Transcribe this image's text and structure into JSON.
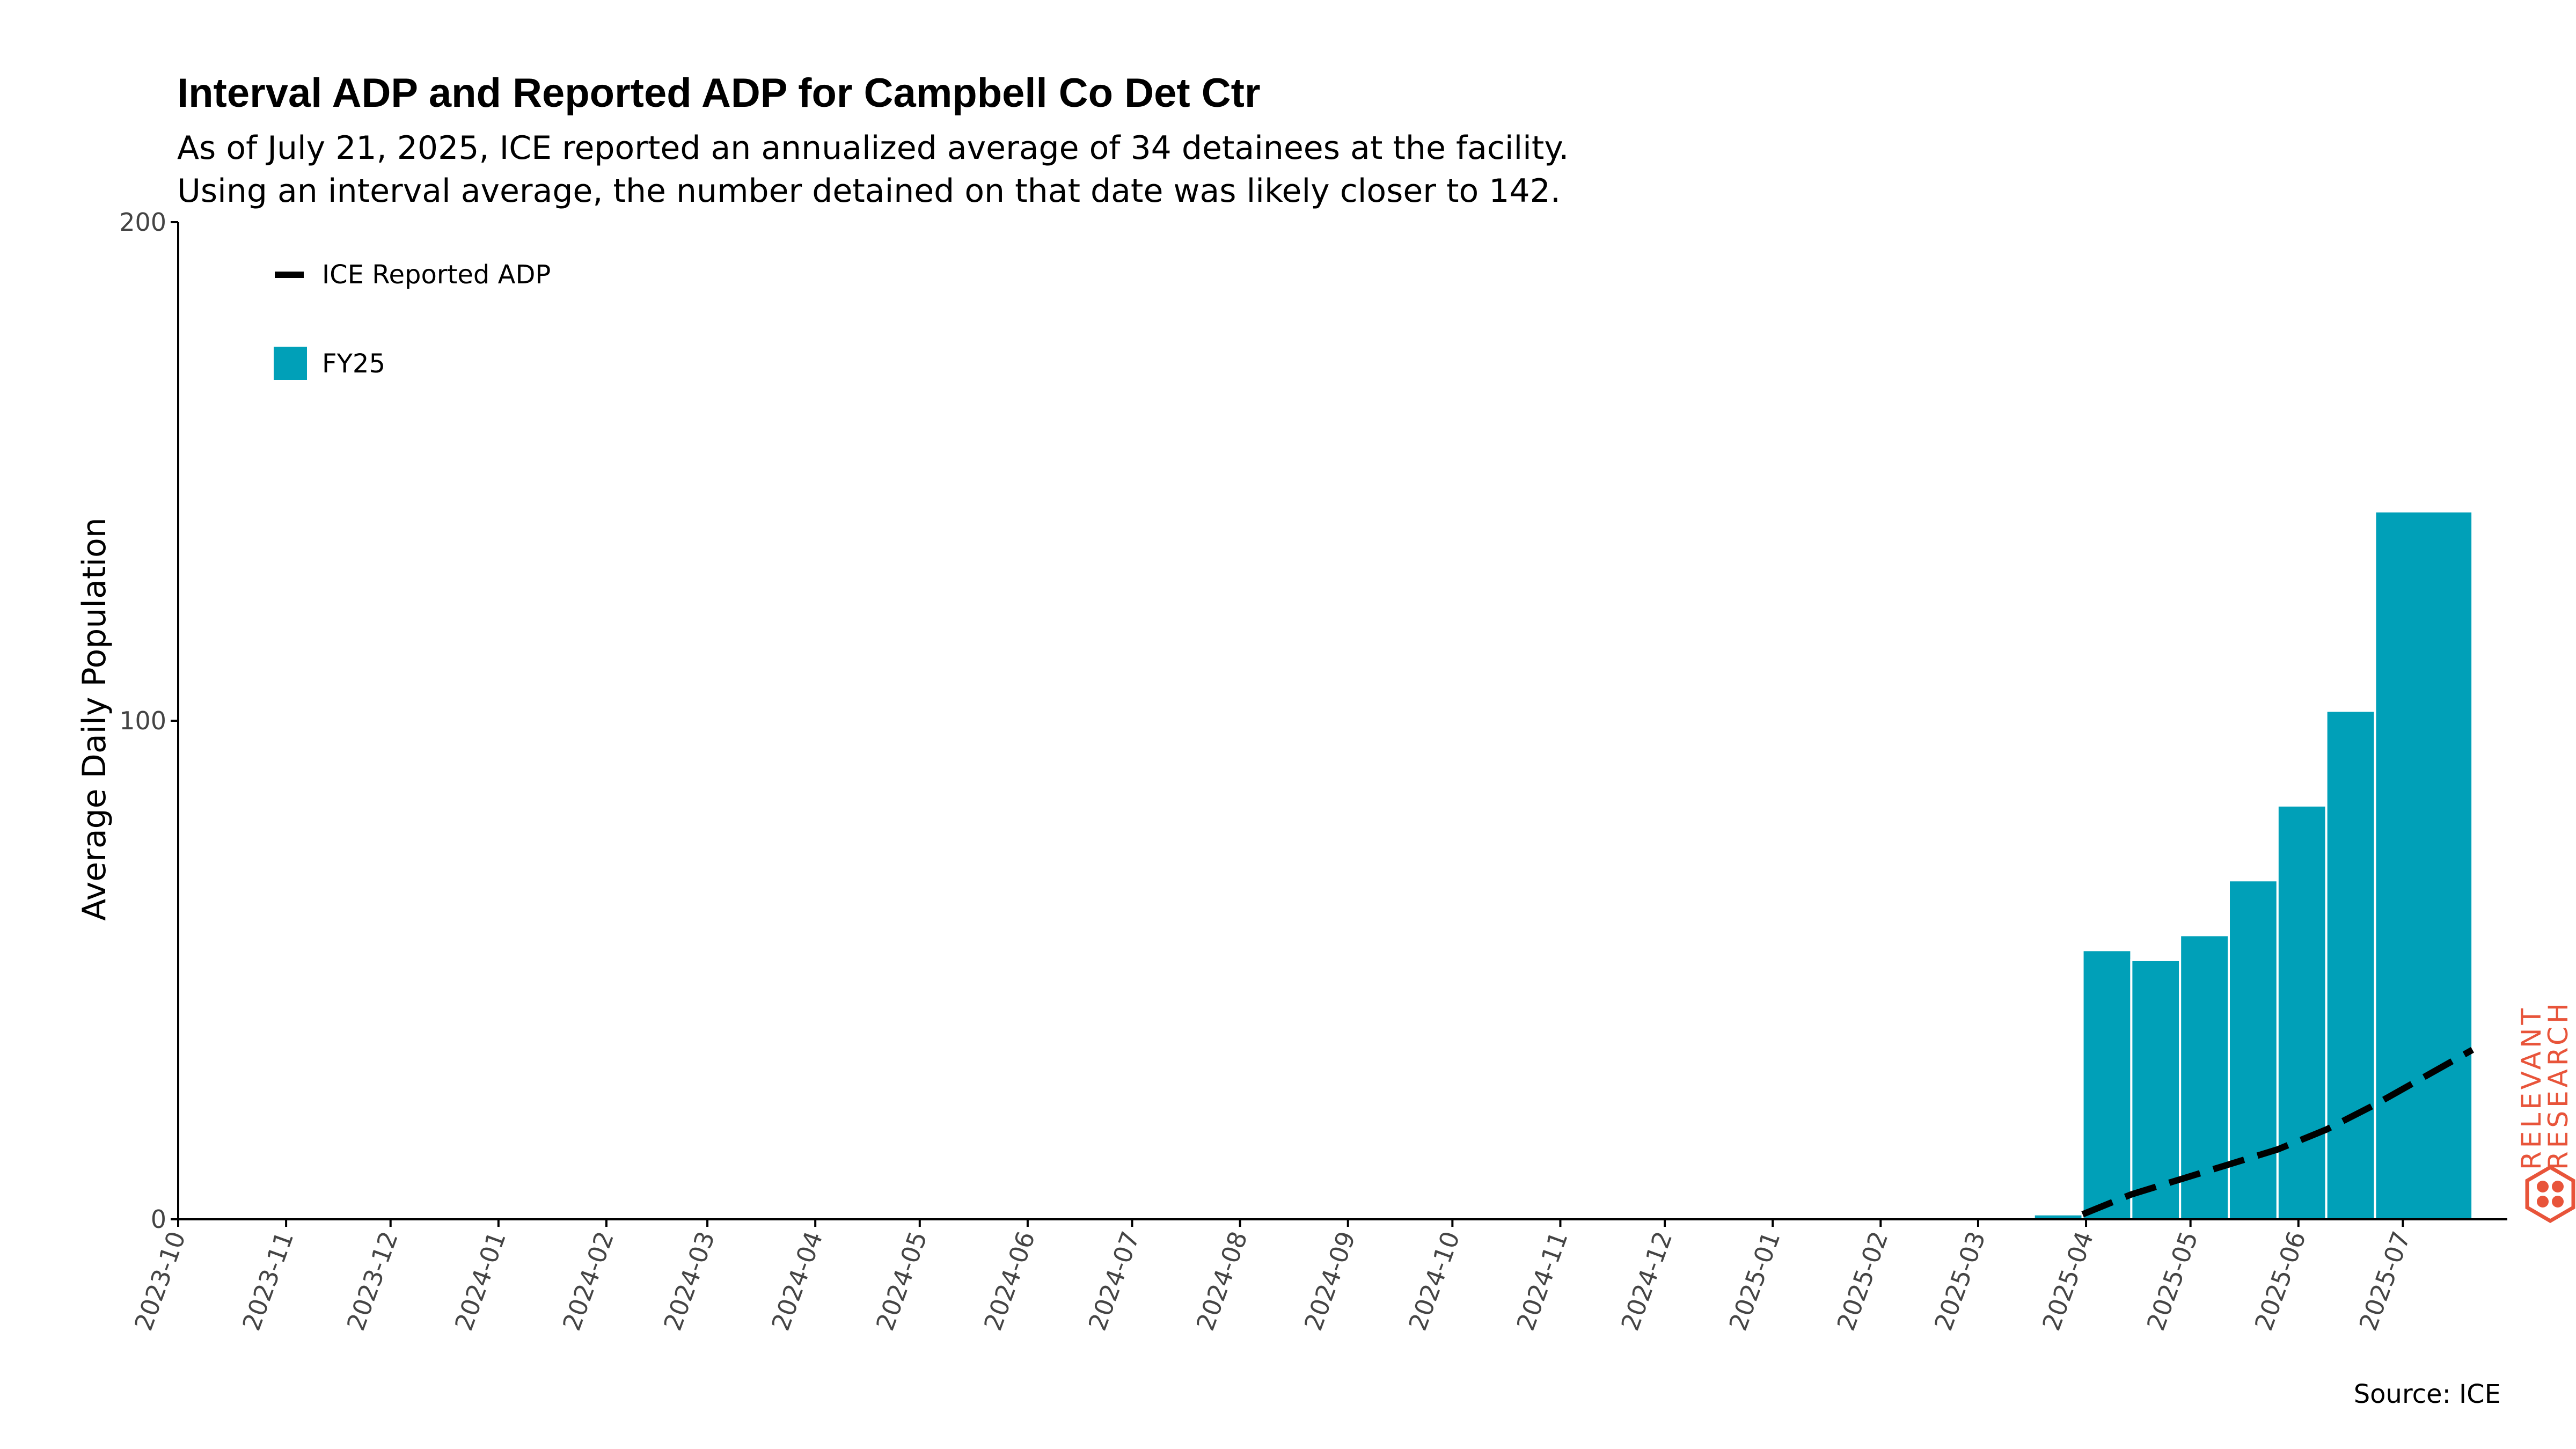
{
  "chart_data": {
    "type": "bar",
    "title": "Interval ADP and Reported ADP for Campbell Co Det Ctr",
    "subtitle": [
      "As of July 21, 2025, ICE reported an annualized average of 34 detainees at the facility.",
      "Using an interval average, the number detained on that date was likely closer to 142."
    ],
    "xlabel": "",
    "ylabel": "Average Daily Population",
    "ylim": [
      0,
      200
    ],
    "y_ticks": [
      "0",
      "100",
      "200"
    ],
    "x_tick_labels": [
      "2023-10",
      "2023-11",
      "2023-12",
      "2024-01",
      "2024-02",
      "2024-03",
      "2024-04",
      "2024-05",
      "2024-06",
      "2024-07",
      "2024-08",
      "2024-09",
      "2024-10",
      "2024-11",
      "2024-12",
      "2025-01",
      "2025-02",
      "2025-03",
      "2025-04",
      "2025-05",
      "2025-06",
      "2025-07"
    ],
    "x_range": [
      "2023-10-01",
      "2025-07-31"
    ],
    "grid": false,
    "legend_position": "top-left",
    "bars": {
      "name": "FY25",
      "color": "#00a0b8",
      "intervals": [
        {
          "start": "2025-03-17",
          "end": "2025-03-31",
          "value": 1
        },
        {
          "start": "2025-03-31",
          "end": "2025-04-14",
          "value": 54
        },
        {
          "start": "2025-04-14",
          "end": "2025-04-28",
          "value": 52
        },
        {
          "start": "2025-04-28",
          "end": "2025-05-12",
          "value": 57
        },
        {
          "start": "2025-05-12",
          "end": "2025-05-26",
          "value": 68
        },
        {
          "start": "2025-05-26",
          "end": "2025-06-09",
          "value": 83
        },
        {
          "start": "2025-06-09",
          "end": "2025-06-23",
          "value": 102
        },
        {
          "start": "2025-06-23",
          "end": "2025-07-21",
          "value": 142
        }
      ]
    },
    "line": {
      "name": "ICE Reported ADP",
      "color": "#000000",
      "style": "dashed",
      "points": [
        {
          "x": "2025-03-31",
          "y": 1
        },
        {
          "x": "2025-04-14",
          "y": 5
        },
        {
          "x": "2025-04-28",
          "y": 8
        },
        {
          "x": "2025-05-12",
          "y": 11
        },
        {
          "x": "2025-05-26",
          "y": 14
        },
        {
          "x": "2025-06-09",
          "y": 18
        },
        {
          "x": "2025-06-23",
          "y": 23
        },
        {
          "x": "2025-07-21",
          "y": 34
        }
      ]
    },
    "source": "Source: ICE"
  },
  "logo": {
    "line1": "RELEVANT",
    "line2": "RESEARCH",
    "color": "#e8543a"
  }
}
